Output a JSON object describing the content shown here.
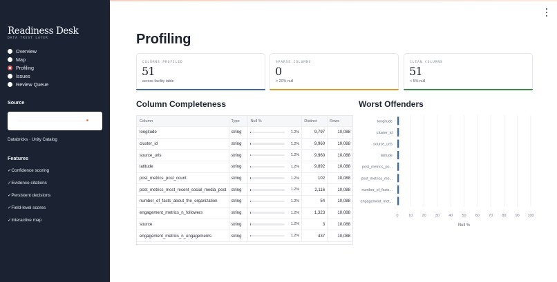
{
  "sidebar": {
    "brand": "Readiness Desk",
    "tagline": "DATA TRUST LAYER",
    "nav": [
      {
        "label": "Overview",
        "selected": false
      },
      {
        "label": "Map",
        "selected": false
      },
      {
        "label": "Profiling",
        "selected": true
      },
      {
        "label": "Issues",
        "selected": false
      },
      {
        "label": "Review Queue",
        "selected": false
      }
    ],
    "source_heading": "Source",
    "source_value": "Databricks · Unity Catalog",
    "features_heading": "Features",
    "features": [
      "✓Confidence scoring",
      "✓Evidence citations",
      "✓Persistent decisions",
      "✓Field-level scores",
      "✓Interactive map"
    ]
  },
  "main": {
    "title": "Profiling",
    "cards": [
      {
        "label": "COLUMNS PROFILED",
        "value": "51",
        "sub": "across facility table",
        "color": "#3e6a9e"
      },
      {
        "label": "SPARSE COLUMNS",
        "value": "0",
        "sub": "> 20% null",
        "color": "#d39a2c"
      },
      {
        "label": "CLEAN COLUMNS",
        "value": "51",
        "sub": "< 5% null",
        "color": "#3b8a4a"
      }
    ],
    "completeness_heading": "Column Completeness",
    "offenders_heading": "Worst Offenders",
    "table": {
      "columns": [
        "Column",
        "Type",
        "Null %",
        "Distinct",
        "Rows"
      ],
      "rows": [
        {
          "column": "longitude",
          "type": "string",
          "null_pct": "1.2%",
          "null_value": 1.2,
          "distinct": "9,797",
          "rows": "10,088"
        },
        {
          "column": "cluster_id",
          "type": "string",
          "null_pct": "1.2%",
          "null_value": 1.2,
          "distinct": "9,960",
          "rows": "10,088"
        },
        {
          "column": "source_urls",
          "type": "string",
          "null_pct": "1.2%",
          "null_value": 1.2,
          "distinct": "9,960",
          "rows": "10,088"
        },
        {
          "column": "latitude",
          "type": "string",
          "null_pct": "1.2%",
          "null_value": 1.2,
          "distinct": "9,892",
          "rows": "10,088"
        },
        {
          "column": "post_metrics_post_count",
          "type": "string",
          "null_pct": "1.2%",
          "null_value": 1.2,
          "distinct": "102",
          "rows": "10,088"
        },
        {
          "column": "post_metrics_most_recent_social_media_post",
          "type": "string",
          "null_pct": "1.2%",
          "null_value": 1.2,
          "distinct": "2,116",
          "rows": "10,088"
        },
        {
          "column": "number_of_facts_about_the_organization",
          "type": "string",
          "null_pct": "1.2%",
          "null_value": 1.2,
          "distinct": "54",
          "rows": "10,088"
        },
        {
          "column": "engagement_metrics_n_followers",
          "type": "string",
          "null_pct": "1.2%",
          "null_value": 1.2,
          "distinct": "1,323",
          "rows": "10,088"
        },
        {
          "column": "source",
          "type": "string",
          "null_pct": "1.2%",
          "null_value": 1.2,
          "distinct": "3",
          "rows": "10,088"
        },
        {
          "column": "engagement_metrics_n_engagements",
          "type": "string",
          "null_pct": "1.2%",
          "null_value": 1.2,
          "distinct": "437",
          "rows": "10,088"
        }
      ]
    }
  },
  "chart_data": {
    "type": "bar",
    "orientation": "horizontal",
    "categories": [
      "longitude",
      "cluster_id",
      "source_urls",
      "latitude",
      "post_metrics_po...",
      "post_metrics_mo...",
      "number_of_facts...",
      "engagement_met..."
    ],
    "values": [
      1.2,
      1.2,
      1.2,
      1.2,
      1.2,
      1.2,
      1.2,
      1.2
    ],
    "xlabel": "Null %",
    "ylabel": "",
    "xlim": [
      0,
      100
    ],
    "xticks": [
      0,
      10,
      20,
      30,
      40,
      50,
      60,
      70,
      80,
      90,
      100
    ],
    "grid": true,
    "bar_color": "#3e6a9e"
  }
}
